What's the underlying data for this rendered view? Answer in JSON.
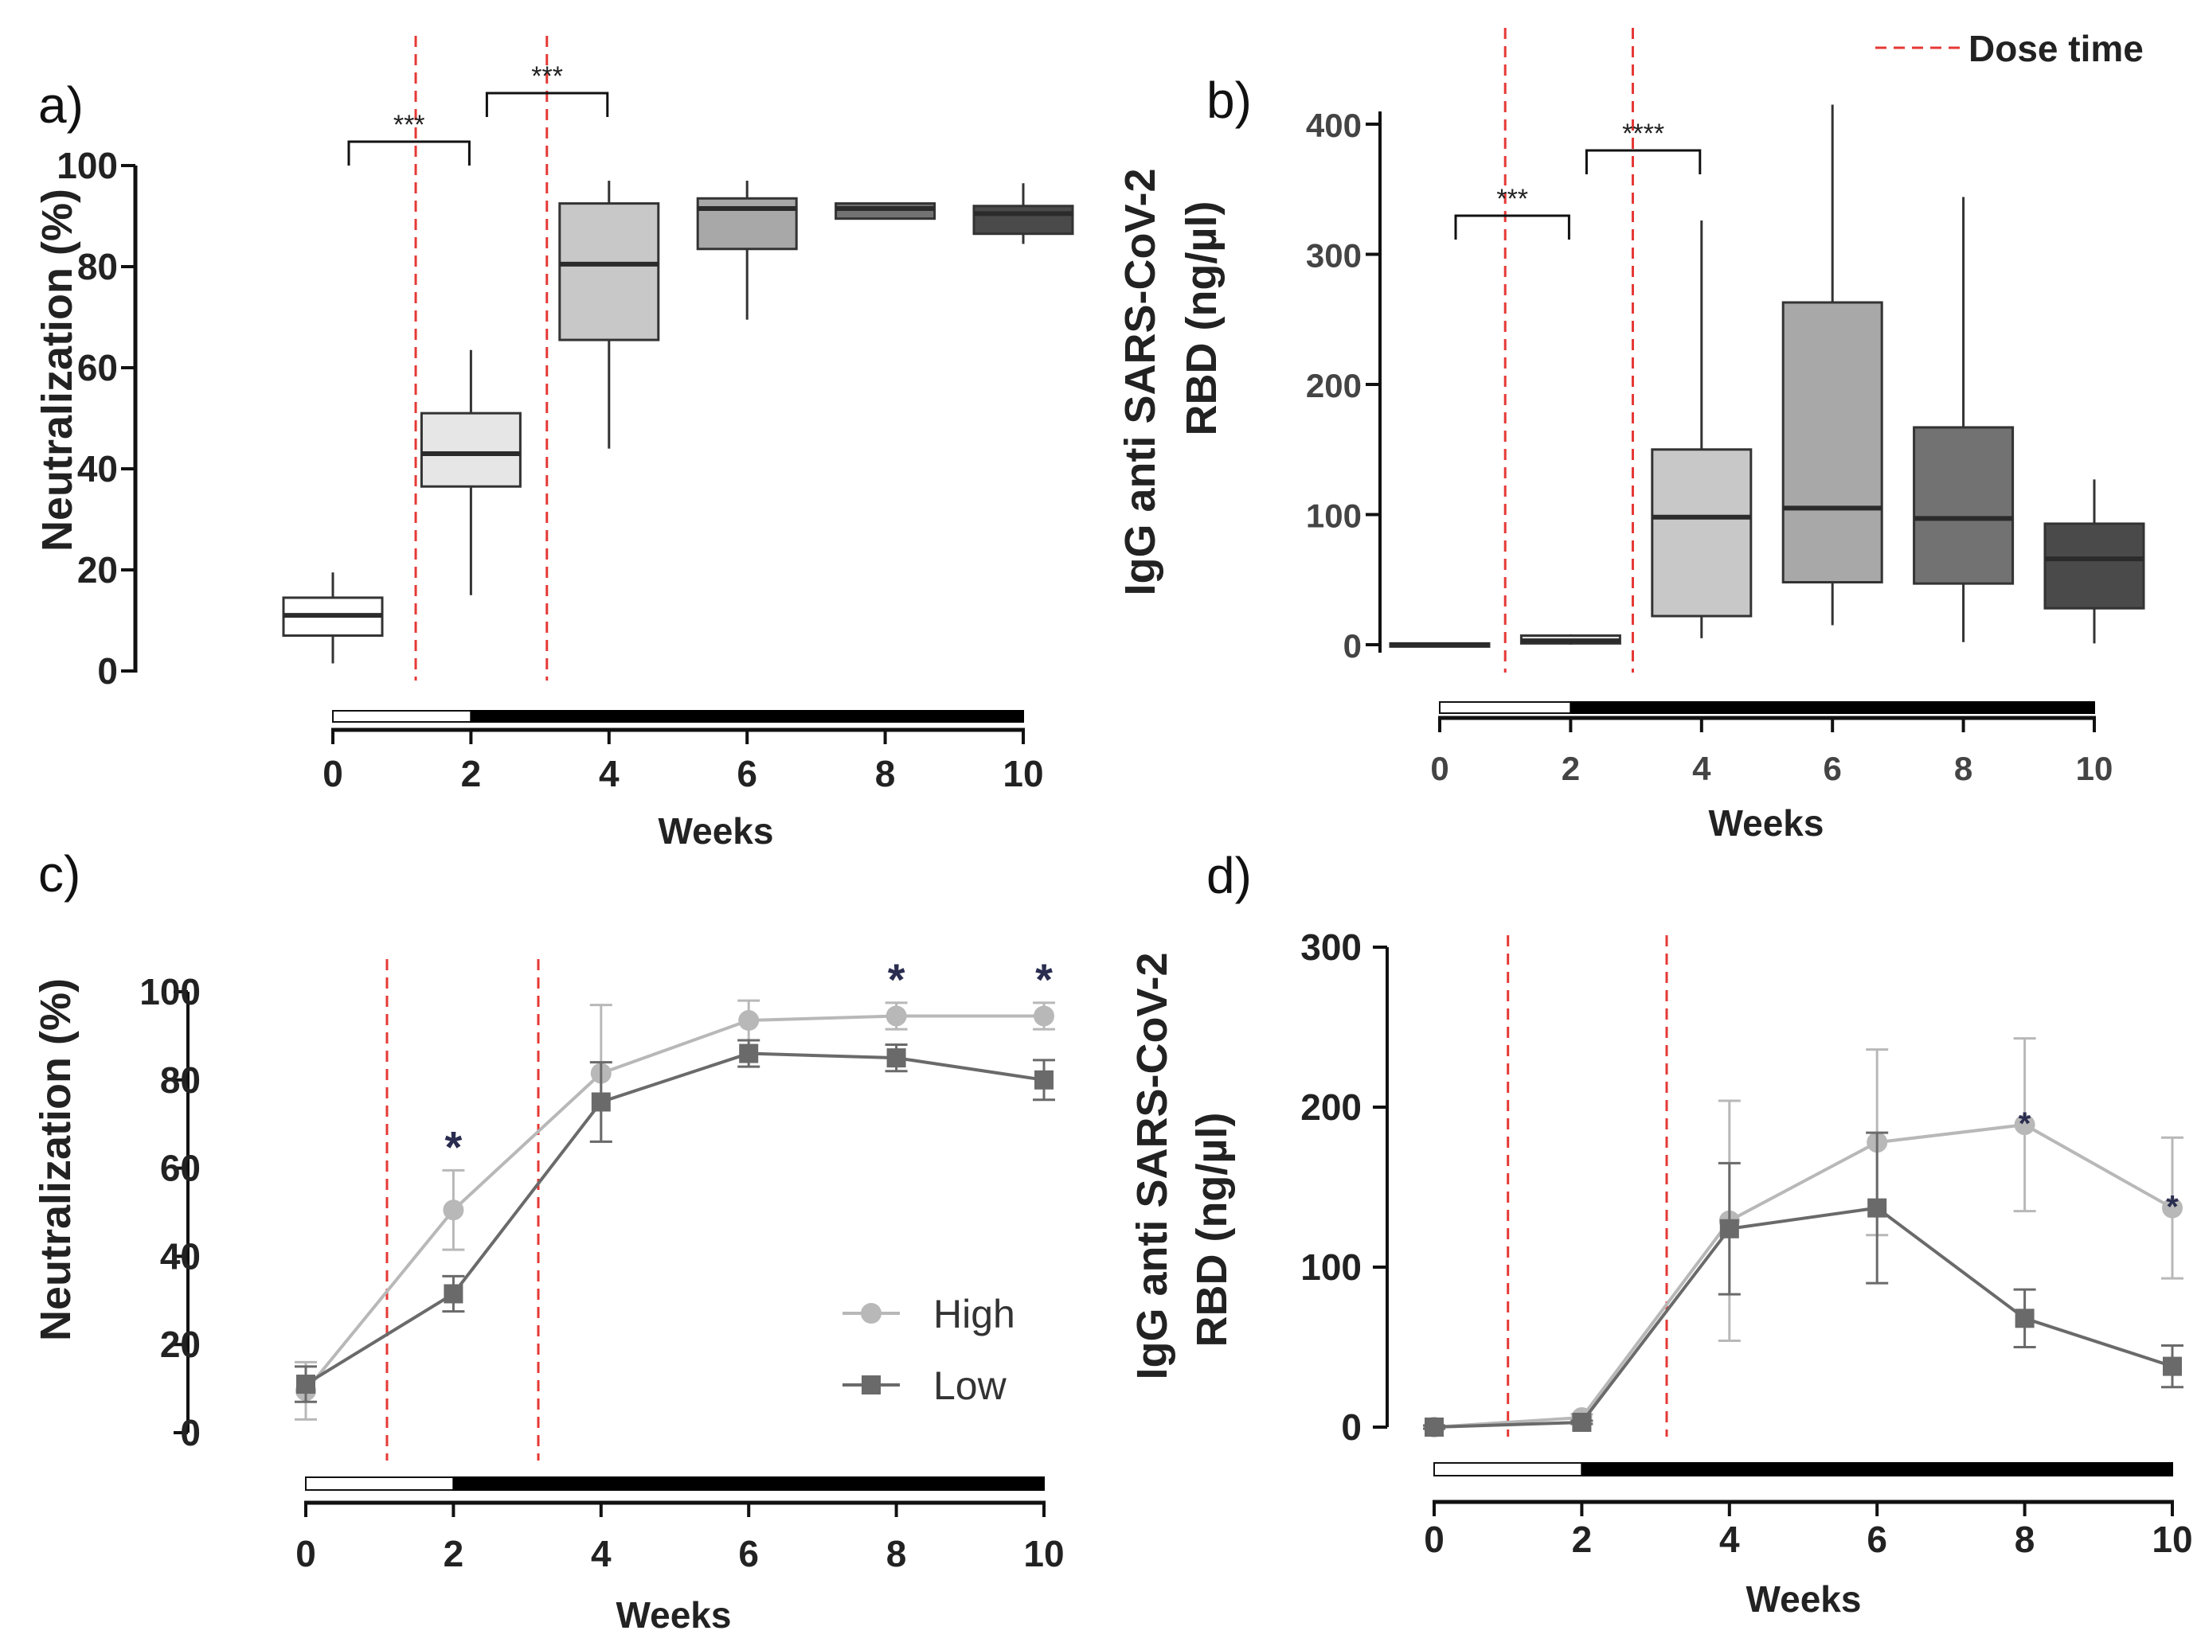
{
  "dose_legend": "Dose time",
  "colors": {
    "dose_line": "#e53935",
    "high": "#b8b8b8",
    "low": "#6a6a6a",
    "box_week0": "#ffffff",
    "box_week2": "#e6e6e6",
    "box_week4": "#c8c8c8",
    "box_week6": "#a8a8a8",
    "box_week8": "#727272",
    "box_week10": "#4a4a4a"
  },
  "chart_data": [
    {
      "panel": "a)",
      "type": "box",
      "xlabel": "Weeks",
      "ylabel": "Neutralization (%)",
      "ylim": [
        0,
        100
      ],
      "yticks": [
        0,
        20,
        40,
        60,
        80,
        100
      ],
      "xlim": [
        0,
        10
      ],
      "xticks": [
        0,
        2,
        4,
        6,
        8,
        10
      ],
      "dose_weeks": [
        1.2,
        3.1
      ],
      "dose_bar": {
        "open_until": 2,
        "filled_until": 10
      },
      "boxes": [
        {
          "week": 0,
          "min": 1.5,
          "q1": 7,
          "median": 11,
          "q3": 14.5,
          "max": 19.5
        },
        {
          "week": 2,
          "min": 15,
          "q1": 36.5,
          "median": 43,
          "q3": 51,
          "max": 63.5
        },
        {
          "week": 4,
          "min": 44,
          "q1": 65.5,
          "median": 80.5,
          "q3": 92.5,
          "max": 97
        },
        {
          "week": 6,
          "min": 69.5,
          "q1": 83.5,
          "median": 91.5,
          "q3": 93.5,
          "max": 97
        },
        {
          "week": 8,
          "min": 89.5,
          "q1": 89.5,
          "median": 91.5,
          "q3": 92.5,
          "max": 92.5
        },
        {
          "week": 10,
          "min": 84.5,
          "q1": 86.5,
          "median": 90.5,
          "q3": 92,
          "max": 96.5
        }
      ],
      "significance": [
        {
          "from": 0,
          "to": 2,
          "label": "***"
        },
        {
          "from": 2,
          "to": 4,
          "label": "***"
        }
      ]
    },
    {
      "panel": "b)",
      "type": "box",
      "xlabel": "Weeks",
      "ylabel_lines": [
        "IgG anti SARS-CoV-2",
        "RBD (ng/µl)"
      ],
      "ylim": [
        0,
        400
      ],
      "yticks": [
        0,
        100,
        200,
        300,
        400
      ],
      "xlim": [
        0,
        10
      ],
      "xticks": [
        0,
        2,
        4,
        6,
        8,
        10
      ],
      "dose_weeks": [
        1,
        2.95
      ],
      "dose_bar": {
        "open_until": 2,
        "filled_until": 10
      },
      "boxes": [
        {
          "week": 0,
          "min": 0,
          "q1": 0,
          "median": 0,
          "q3": 1,
          "max": 1
        },
        {
          "week": 2,
          "min": 0,
          "q1": 1,
          "median": 3,
          "q3": 7,
          "max": 8
        },
        {
          "week": 4,
          "min": 5,
          "q1": 22,
          "median": 98,
          "q3": 150,
          "max": 326
        },
        {
          "week": 6,
          "min": 15,
          "q1": 48,
          "median": 105,
          "q3": 263,
          "max": 415
        },
        {
          "week": 8,
          "min": 2,
          "q1": 47,
          "median": 97,
          "q3": 167,
          "max": 344
        },
        {
          "week": 10,
          "min": 1,
          "q1": 28,
          "median": 66,
          "q3": 93,
          "max": 127
        }
      ],
      "significance": [
        {
          "from": 0,
          "to": 2,
          "label": "***"
        },
        {
          "from": 2,
          "to": 4,
          "label": "****"
        }
      ]
    },
    {
      "panel": "c)",
      "type": "line",
      "xlabel": "Weeks",
      "ylabel": "Neutralization (%)",
      "ylim": [
        0,
        100
      ],
      "yticks": [
        0,
        20,
        40,
        60,
        80,
        100
      ],
      "xlim": [
        0,
        10
      ],
      "xticks": [
        0,
        2,
        4,
        6,
        8,
        10
      ],
      "dose_weeks": [
        1.1,
        3.15
      ],
      "dose_bar": {
        "open_until": 2,
        "filled_until": 10
      },
      "series": [
        {
          "name": "High",
          "marker": "circle",
          "x": [
            0,
            2,
            4,
            6,
            8,
            10
          ],
          "y": [
            9.5,
            50.5,
            81.5,
            93.5,
            94.5,
            94.5
          ],
          "err": [
            6.5,
            9,
            15.5,
            4.5,
            3,
            3
          ]
        },
        {
          "name": "Low",
          "marker": "square",
          "x": [
            0,
            2,
            4,
            6,
            8,
            10
          ],
          "y": [
            11,
            31.5,
            75,
            86,
            85,
            80
          ],
          "err": [
            4,
            4,
            9,
            3,
            3,
            4.5
          ]
        }
      ],
      "stars": [
        {
          "week": 2,
          "y": 59.5,
          "label": "*"
        },
        {
          "week": 8,
          "y": 97.5,
          "label": "*"
        },
        {
          "week": 10,
          "y": 97.5,
          "label": "*"
        }
      ]
    },
    {
      "panel": "d)",
      "type": "line",
      "xlabel": "Weeks",
      "ylabel_lines": [
        "IgG anti SARS-CoV-2",
        "RBD (ng/µl)"
      ],
      "ylim": [
        0,
        300
      ],
      "yticks": [
        0,
        100,
        200,
        300
      ],
      "xlim": [
        0,
        10
      ],
      "xticks": [
        0,
        2,
        4,
        6,
        8,
        10
      ],
      "dose_weeks": [
        1,
        3.15
      ],
      "dose_bar": {
        "open_until": 2,
        "filled_until": 10
      },
      "series": [
        {
          "name": "High",
          "marker": "circle",
          "x": [
            0,
            2,
            4,
            6,
            8,
            10
          ],
          "y": [
            0,
            6,
            129,
            178,
            189,
            137
          ],
          "err": [
            1,
            2,
            75,
            58,
            54,
            44
          ]
        },
        {
          "name": "Low",
          "marker": "square",
          "x": [
            0,
            2,
            4,
            6,
            8,
            10
          ],
          "y": [
            0,
            3,
            124,
            137,
            68,
            38
          ],
          "err": [
            1,
            1,
            41,
            47,
            18,
            13
          ]
        }
      ],
      "stars": [
        {
          "week": 8,
          "y": 189,
          "label": "*"
        },
        {
          "week": 10,
          "y": 137,
          "label": "*"
        }
      ]
    }
  ]
}
